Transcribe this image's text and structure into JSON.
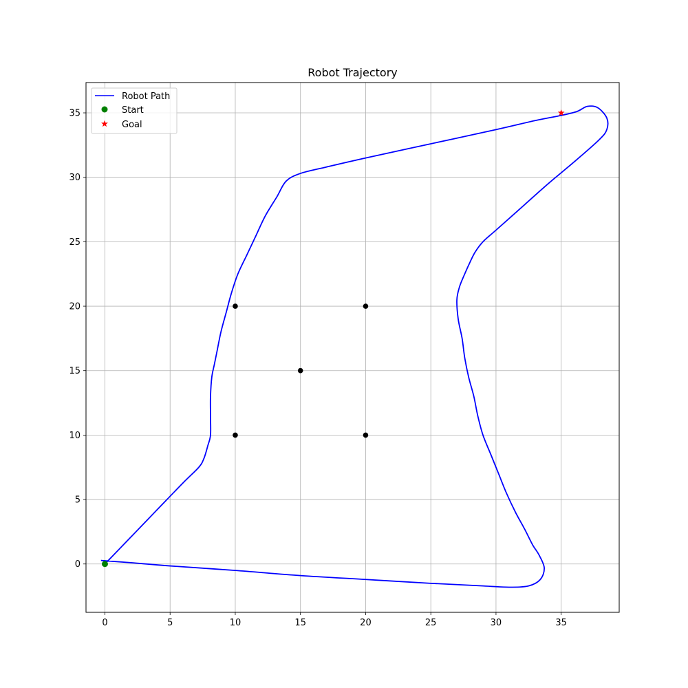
{
  "chart_data": {
    "type": "line",
    "title": "Robot Trajectory",
    "xlabel": "",
    "ylabel": "",
    "xlim": [
      -1.45,
      39.45
    ],
    "ylim": [
      -3.75,
      37.35
    ],
    "xticks": [
      0,
      5,
      10,
      15,
      20,
      25,
      30,
      35
    ],
    "yticks": [
      0,
      5,
      10,
      15,
      20,
      25,
      30,
      35
    ],
    "grid": true,
    "legend_position": "upper-left",
    "legend": [
      "Robot Path",
      "Start",
      "Goal"
    ],
    "series": [
      {
        "name": "Robot Path",
        "kind": "line",
        "color": "#0000ff",
        "points": [
          [
            0.0,
            0.0
          ],
          [
            2.0,
            2.1
          ],
          [
            4.0,
            4.2
          ],
          [
            6.0,
            6.3
          ],
          [
            7.2,
            7.5
          ],
          [
            7.6,
            8.2
          ],
          [
            7.9,
            9.2
          ],
          [
            8.1,
            10.0
          ],
          [
            8.1,
            11.5
          ],
          [
            8.1,
            13.0
          ],
          [
            8.2,
            14.5
          ],
          [
            8.4,
            15.5
          ],
          [
            8.6,
            16.5
          ],
          [
            8.9,
            18.0
          ],
          [
            9.3,
            19.5
          ],
          [
            9.7,
            21.0
          ],
          [
            10.2,
            22.5
          ],
          [
            10.9,
            24.0
          ],
          [
            11.6,
            25.5
          ],
          [
            12.3,
            27.0
          ],
          [
            13.2,
            28.5
          ],
          [
            13.9,
            29.7
          ],
          [
            15.0,
            30.3
          ],
          [
            17.0,
            30.8
          ],
          [
            20.0,
            31.5
          ],
          [
            25.0,
            32.6
          ],
          [
            30.0,
            33.7
          ],
          [
            33.0,
            34.4
          ],
          [
            35.0,
            34.8
          ],
          [
            36.2,
            35.1
          ],
          [
            37.0,
            35.5
          ],
          [
            37.8,
            35.4
          ],
          [
            38.5,
            34.6
          ],
          [
            38.5,
            33.7
          ],
          [
            37.9,
            32.9
          ],
          [
            36.0,
            31.2
          ],
          [
            34.0,
            29.5
          ],
          [
            32.0,
            27.7
          ],
          [
            30.0,
            25.9
          ],
          [
            29.0,
            25.0
          ],
          [
            28.4,
            24.2
          ],
          [
            28.0,
            23.4
          ],
          [
            27.6,
            22.5
          ],
          [
            27.2,
            21.5
          ],
          [
            27.0,
            20.5
          ],
          [
            27.1,
            19.0
          ],
          [
            27.4,
            17.5
          ],
          [
            27.6,
            16.0
          ],
          [
            27.9,
            14.5
          ],
          [
            28.3,
            13.0
          ],
          [
            28.6,
            11.5
          ],
          [
            29.0,
            10.0
          ],
          [
            29.6,
            8.5
          ],
          [
            30.2,
            7.0
          ],
          [
            30.8,
            5.5
          ],
          [
            31.5,
            4.0
          ],
          [
            32.2,
            2.7
          ],
          [
            32.8,
            1.5
          ],
          [
            33.3,
            0.7
          ],
          [
            33.7,
            -0.3
          ],
          [
            33.4,
            -1.2
          ],
          [
            32.5,
            -1.7
          ],
          [
            31.0,
            -1.8
          ],
          [
            29.0,
            -1.7
          ],
          [
            25.0,
            -1.5
          ],
          [
            20.0,
            -1.2
          ],
          [
            15.0,
            -0.9
          ],
          [
            10.0,
            -0.5
          ],
          [
            5.0,
            -0.15
          ],
          [
            2.0,
            0.1
          ],
          [
            0.0,
            0.25
          ],
          [
            -0.3,
            0.28
          ]
        ]
      },
      {
        "name": "Start",
        "kind": "scatter",
        "marker": "circle",
        "color": "#008000",
        "points": [
          [
            0,
            0
          ]
        ]
      },
      {
        "name": "Goal",
        "kind": "scatter",
        "marker": "star",
        "color": "#ff0000",
        "points": [
          [
            35,
            35
          ]
        ]
      },
      {
        "name": "",
        "kind": "scatter",
        "marker": "circle",
        "color": "#000000",
        "points": [
          [
            10,
            10
          ],
          [
            10,
            20
          ],
          [
            15,
            15
          ],
          [
            20,
            10
          ],
          [
            20,
            20
          ]
        ]
      }
    ]
  }
}
